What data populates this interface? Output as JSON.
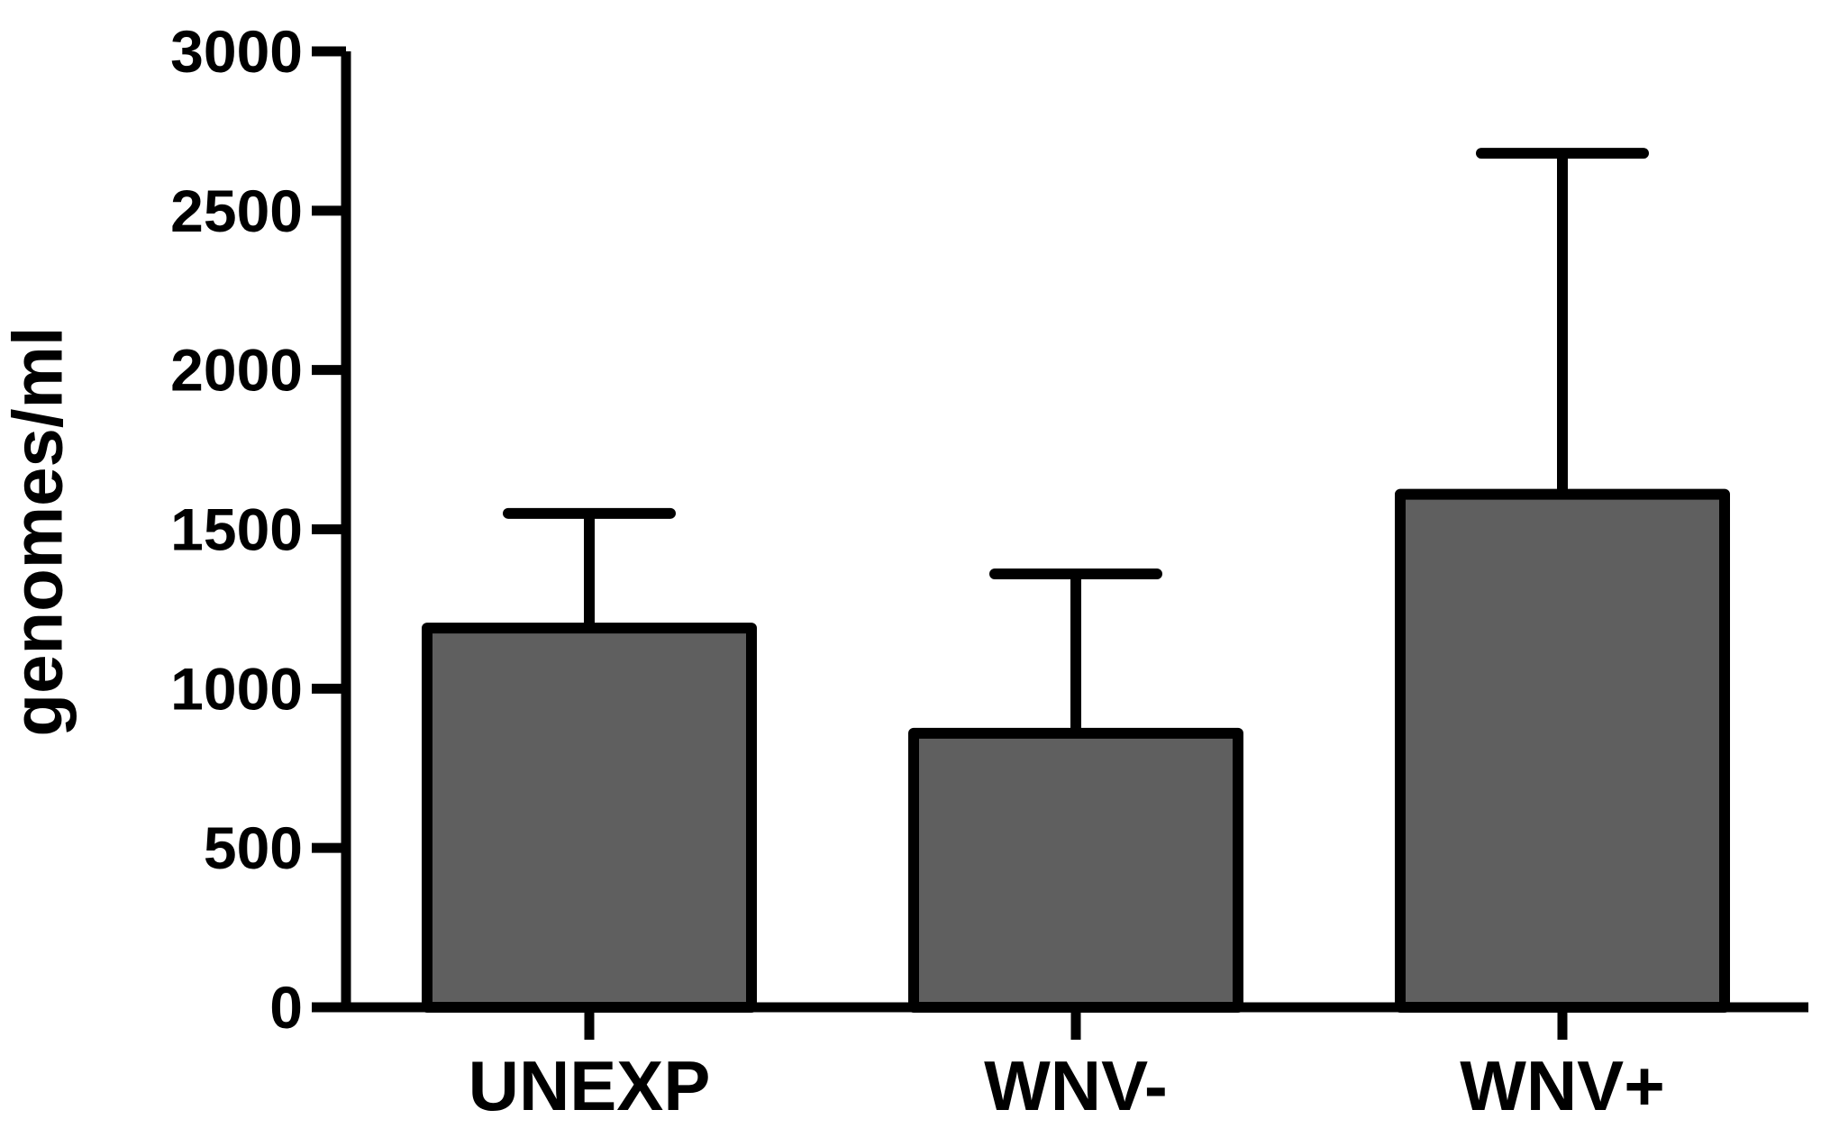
{
  "chart_data": {
    "type": "bar",
    "title": "",
    "xlabel": "",
    "ylabel": "genomes/ml",
    "categories": [
      "UNEXP",
      "WNV-",
      "WNV+"
    ],
    "values": [
      1190,
      860,
      1610
    ],
    "error_upper": [
      1550,
      1360,
      2680
    ],
    "error_bars": "upper-only",
    "ylim": [
      0,
      3000
    ],
    "yticks": [
      0,
      500,
      1000,
      1500,
      2000,
      2500,
      3000
    ],
    "ytick_labels": [
      "0",
      "500",
      "1000",
      "1500",
      "2000",
      "2500",
      "3000"
    ],
    "grid": false,
    "legend": "none",
    "colors": {
      "bar_fill": "#5f5f5f",
      "bar_stroke": "#000000",
      "axis": "#000000",
      "background": "#ffffff"
    }
  }
}
